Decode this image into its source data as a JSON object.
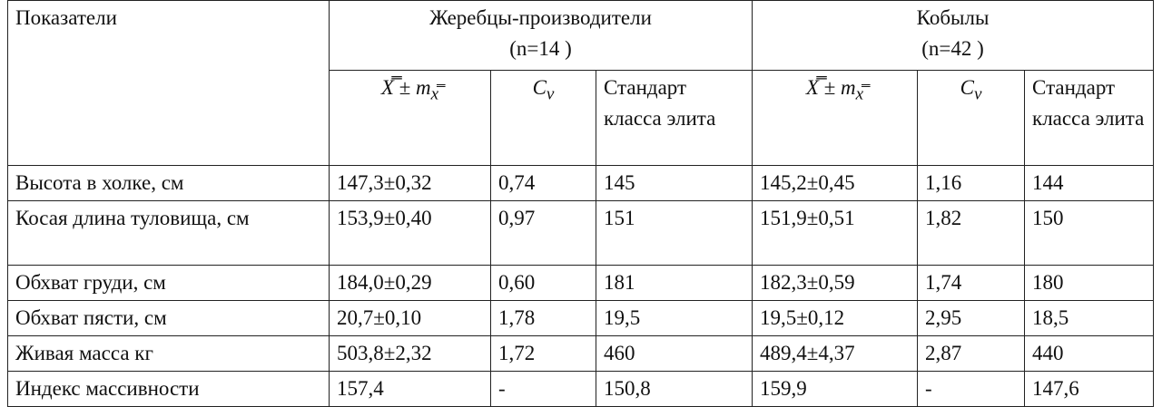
{
  "table": {
    "header": {
      "indicator": "Показатели",
      "groups": [
        {
          "title": "Жеребцы-производители",
          "n": "(n=14 )",
          "columns": [
            {
              "main": "X̿ ± m",
              "sub": "x̿"
            },
            {
              "main": "C",
              "sub": "v"
            },
            {
              "main": "Стандарт класса элита"
            }
          ]
        },
        {
          "title": "Кобылы",
          "n": "(n=42 )",
          "columns": [
            {
              "main": "X̿ ± m",
              "sub": "x̿"
            },
            {
              "main": "C",
              "sub": "v"
            },
            {
              "main": "Стандарт класса элита"
            }
          ]
        }
      ]
    },
    "rows": [
      [
        "Высота в холке, см",
        "147,3±0,32",
        "0,74",
        "145",
        "145,2±0,45",
        "1,16",
        "144"
      ],
      [
        "Косая длина туловища, см",
        "153,9±0,40",
        "0,97",
        "151",
        "151,9±0,51",
        "1,82",
        "150"
      ],
      [
        "Обхват груди, см",
        "184,0±0,29",
        "0,60",
        "181",
        "182,3±0,59",
        "1,74",
        "180"
      ],
      [
        "Обхват пясти, см",
        "20,7±0,10",
        "1,78",
        "19,5",
        "19,5±0,12",
        "2,95",
        "18,5"
      ],
      [
        "Живая масса кг",
        "503,8±2,32",
        "1,72",
        "460",
        "489,4±4,37",
        "2,87",
        "440"
      ],
      [
        "Индекс массивности",
        "157,4",
        "-",
        "150,8",
        "159,9",
        "-",
        "147,6"
      ]
    ]
  }
}
